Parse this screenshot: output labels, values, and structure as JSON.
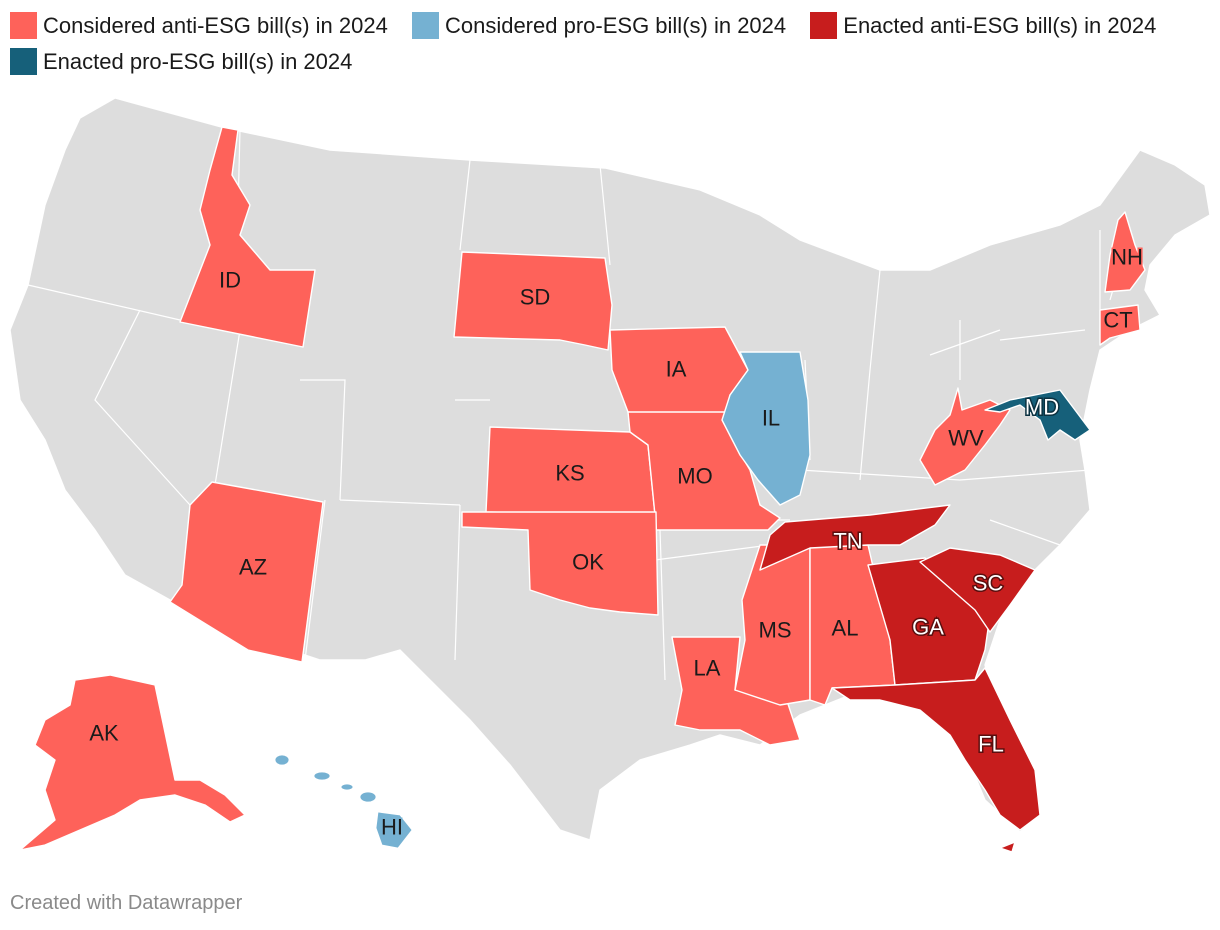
{
  "legend": [
    {
      "label": "Considered anti-ESG bill(s) in 2024",
      "color": "#fe625a"
    },
    {
      "label": "Considered pro-ESG bill(s) in 2024",
      "color": "#75b1d2"
    },
    {
      "label": "Enacted anti-ESG bill(s) in 2024",
      "color": "#c71d1d"
    },
    {
      "label": "Enacted pro-ESG bill(s) in 2024",
      "color": "#16607a"
    }
  ],
  "base_color": "#dddddd",
  "states": [
    {
      "abbr": "ID",
      "status": "Considered anti-ESG bill(s) in 2024",
      "color": "#fe625a"
    },
    {
      "abbr": "SD",
      "status": "Considered anti-ESG bill(s) in 2024",
      "color": "#fe625a"
    },
    {
      "abbr": "IA",
      "status": "Considered anti-ESG bill(s) in 2024",
      "color": "#fe625a"
    },
    {
      "abbr": "KS",
      "status": "Considered anti-ESG bill(s) in 2024",
      "color": "#fe625a"
    },
    {
      "abbr": "MO",
      "status": "Considered anti-ESG bill(s) in 2024",
      "color": "#fe625a"
    },
    {
      "abbr": "OK",
      "status": "Considered anti-ESG bill(s) in 2024",
      "color": "#fe625a"
    },
    {
      "abbr": "AZ",
      "status": "Considered anti-ESG bill(s) in 2024",
      "color": "#fe625a"
    },
    {
      "abbr": "LA",
      "status": "Considered anti-ESG bill(s) in 2024",
      "color": "#fe625a"
    },
    {
      "abbr": "MS",
      "status": "Considered anti-ESG bill(s) in 2024",
      "color": "#fe625a"
    },
    {
      "abbr": "AL",
      "status": "Considered anti-ESG bill(s) in 2024",
      "color": "#fe625a"
    },
    {
      "abbr": "WV",
      "status": "Considered anti-ESG bill(s) in 2024",
      "color": "#fe625a"
    },
    {
      "abbr": "NH",
      "status": "Considered anti-ESG bill(s) in 2024",
      "color": "#fe625a"
    },
    {
      "abbr": "CT",
      "status": "Considered anti-ESG bill(s) in 2024",
      "color": "#fe625a"
    },
    {
      "abbr": "AK",
      "status": "Considered anti-ESG bill(s) in 2024",
      "color": "#fe625a"
    },
    {
      "abbr": "IL",
      "status": "Considered pro-ESG bill(s) in 2024",
      "color": "#75b1d2"
    },
    {
      "abbr": "HI",
      "status": "Considered pro-ESG bill(s) in 2024",
      "color": "#75b1d2"
    },
    {
      "abbr": "TN",
      "status": "Enacted anti-ESG bill(s) in 2024",
      "color": "#c71d1d"
    },
    {
      "abbr": "GA",
      "status": "Enacted anti-ESG bill(s) in 2024",
      "color": "#c71d1d"
    },
    {
      "abbr": "SC",
      "status": "Enacted anti-ESG bill(s) in 2024",
      "color": "#c71d1d"
    },
    {
      "abbr": "FL",
      "status": "Enacted anti-ESG bill(s) in 2024",
      "color": "#c71d1d"
    },
    {
      "abbr": "MD",
      "status": "Enacted pro-ESG bill(s) in 2024",
      "color": "#16607a"
    }
  ],
  "footer": "Created with Datawrapper"
}
